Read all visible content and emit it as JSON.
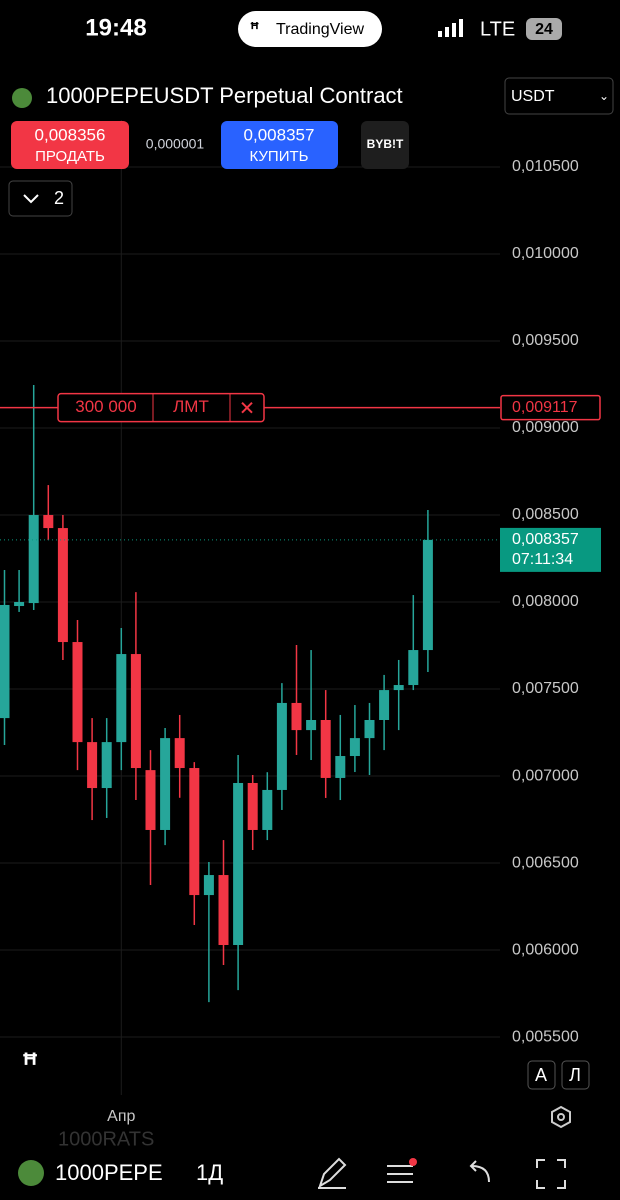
{
  "status_bar": {
    "time": "19:48",
    "app": "TradingView",
    "network": "LTE",
    "battery": "24"
  },
  "header": {
    "symbol": "1000PEPEUSDT Perpetual Contract",
    "currency": "USDT",
    "sell_price": "0,008356",
    "sell_label": "ПРОДАТЬ",
    "spread": "0,000001",
    "buy_price": "0,008357",
    "buy_label": "КУПИТЬ",
    "exchange": "BYB!T",
    "indicators_count": "2"
  },
  "chart_data": {
    "type": "candlestick",
    "categories": [
      null,
      null,
      null,
      null,
      null,
      null,
      null,
      null,
      "Апр",
      null,
      null,
      null,
      null,
      null,
      null,
      null,
      null,
      null,
      null,
      null,
      null,
      null,
      null,
      null,
      null,
      null,
      null,
      null,
      null,
      null
    ],
    "open": [
      0.007333,
      0.007977,
      0.007994,
      0.0085,
      0.008425,
      0.00777,
      0.007195,
      0.006931,
      0.007195,
      0.007701,
      0.007034,
      0.00669,
      0.007218,
      0.007046,
      0.006316,
      0.006431,
      0.006029,
      0.00696,
      0.00669,
      0.00692,
      0.00742,
      0.007264,
      0.007322,
      0.006989,
      0.007115,
      0.007218,
      0.007322,
      0.007494,
      0.007523,
      0.007724
    ],
    "high": [
      0.008184,
      0.008184,
      0.009247,
      0.008672,
      0.0085,
      0.007897,
      0.007333,
      0.007333,
      0.007851,
      0.008057,
      0.007149,
      0.007276,
      0.007351,
      0.00708,
      0.006506,
      0.006632,
      0.007121,
      0.007006,
      0.007022,
      0.007534,
      0.007753,
      0.007724,
      0.007494,
      0.007351,
      0.007408,
      0.00742,
      0.007581,
      0.007667,
      0.00804,
      0.008529
    ],
    "low": [
      0.007178,
      0.007943,
      0.007954,
      0.008356,
      0.007667,
      0.007034,
      0.006747,
      0.006759,
      0.007034,
      0.006862,
      0.006374,
      0.006603,
      0.006875,
      0.006144,
      0.005701,
      0.005914,
      0.00577,
      0.006575,
      0.006632,
      0.006805,
      0.007121,
      0.007092,
      0.006874,
      0.006862,
      0.007023,
      0.007006,
      0.007149,
      0.007264,
      0.007494,
      0.007598
    ],
    "close": [
      0.007983,
      0.008,
      0.0085,
      0.008425,
      0.00777,
      0.007195,
      0.006931,
      0.007195,
      0.007701,
      0.007046,
      0.00669,
      0.007218,
      0.007046,
      0.006316,
      0.006431,
      0.006029,
      0.00696,
      0.00669,
      0.00692,
      0.00742,
      0.007264,
      0.007322,
      0.006989,
      0.007115,
      0.007218,
      0.007322,
      0.007494,
      0.007523,
      0.007724,
      0.008357
    ],
    "up_color": "#26a69a",
    "down_color": "#f23645",
    "ylim": [
      0.005167,
      0.01077
    ],
    "yticks": [
      {
        "value": 0.0055,
        "label": "0,005500"
      },
      {
        "value": 0.006,
        "label": "0,006000"
      },
      {
        "value": 0.0065,
        "label": "0,006500"
      },
      {
        "value": 0.007,
        "label": "0,007000"
      },
      {
        "value": 0.0075,
        "label": "0,007500"
      },
      {
        "value": 0.008,
        "label": "0,008000"
      },
      {
        "value": 0.0085,
        "label": "0,008500"
      },
      {
        "value": 0.009,
        "label": "0,009000"
      },
      {
        "value": 0.0095,
        "label": "0,009500"
      },
      {
        "value": 0.01,
        "label": "0,010000"
      },
      {
        "value": 0.0105,
        "label": "0,010500"
      }
    ],
    "grid": true,
    "order_line": {
      "value": 0.009117,
      "label": "0,009117",
      "quantity": "300 000",
      "order_type": "ЛМТ",
      "color": "#f23645"
    },
    "last_price": {
      "value": 0.008357,
      "label": "0,008357",
      "countdown": "07:11:34",
      "color": "#089981"
    }
  },
  "controls": {
    "auto": "А",
    "log": "Л"
  },
  "bottom_bar": {
    "prev_symbol": "1000RATS",
    "symbol": "1000PEPE",
    "interval": "1Д"
  }
}
